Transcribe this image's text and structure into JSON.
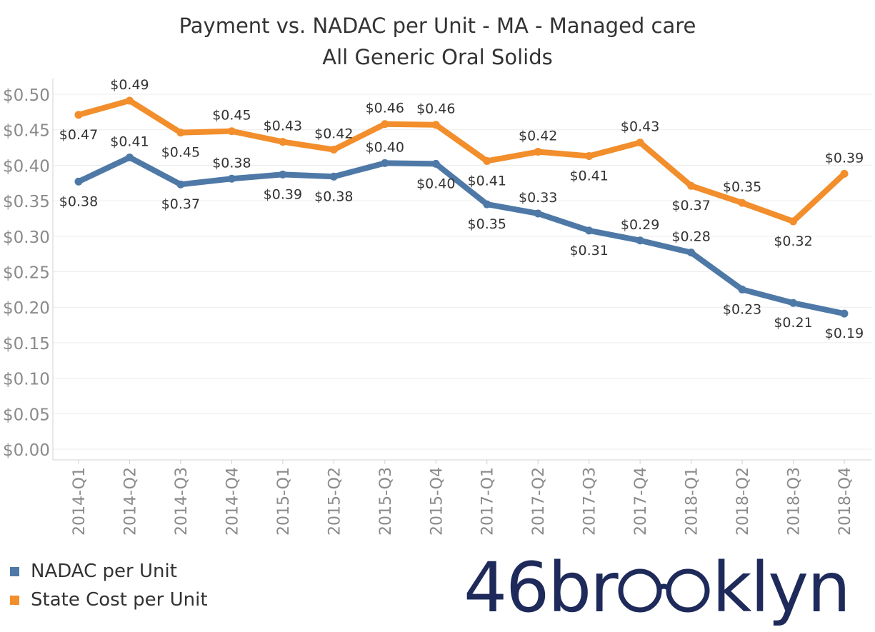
{
  "chart_data": {
    "type": "line",
    "title_line1": "Payment vs. NADAC per Unit - MA - Managed care",
    "title_line2": "All Generic Oral Solids",
    "categories": [
      "2014-Q1",
      "2014-Q2",
      "2014-Q3",
      "2014-Q4",
      "2015-Q1",
      "2015-Q2",
      "2015-Q3",
      "2015-Q4",
      "2017-Q1",
      "2017-Q2",
      "2017-Q3",
      "2017-Q4",
      "2018-Q1",
      "2018-Q2",
      "2018-Q3",
      "2018-Q4"
    ],
    "ylim": [
      0,
      0.5
    ],
    "yticks": [
      0.0,
      0.05,
      0.1,
      0.15,
      0.2,
      0.25,
      0.3,
      0.35,
      0.4,
      0.45,
      0.5
    ],
    "ytick_labels": [
      "$0.00",
      "$0.05",
      "$0.10",
      "$0.15",
      "$0.20",
      "$0.25",
      "$0.30",
      "$0.35",
      "$0.40",
      "$0.45",
      "$0.50"
    ],
    "grid": true,
    "series": [
      {
        "name": "NADAC per Unit",
        "color": "#4e79a7",
        "values": [
          0.377,
          0.411,
          0.373,
          0.381,
          0.387,
          0.384,
          0.403,
          0.402,
          0.345,
          0.332,
          0.308,
          0.294,
          0.277,
          0.225,
          0.206,
          0.191
        ],
        "labels": [
          "$0.38",
          "$0.41",
          "$0.37",
          "$0.38",
          "$0.39",
          "$0.38",
          "$0.40",
          "$0.40",
          "$0.35",
          "$0.33",
          "$0.31",
          "$0.29",
          "$0.28",
          "$0.23",
          "$0.21",
          "$0.19"
        ]
      },
      {
        "name": "State Cost per Unit",
        "color": "#f28e2b",
        "values": [
          0.471,
          0.491,
          0.446,
          0.448,
          0.433,
          0.422,
          0.458,
          0.457,
          0.406,
          0.419,
          0.413,
          0.432,
          0.371,
          0.347,
          0.321,
          0.388
        ],
        "labels": [
          "$0.47",
          "$0.49",
          "$0.45",
          "$0.45",
          "$0.43",
          "$0.42",
          "$0.46",
          "$0.46",
          "$0.41",
          "$0.42",
          "$0.41",
          "$0.43",
          "$0.37",
          "$0.35",
          "$0.32",
          "$0.39"
        ]
      }
    ]
  },
  "legend": {
    "items": [
      {
        "label": "NADAC per Unit",
        "color": "#4e79a7"
      },
      {
        "label": "State Cost per Unit",
        "color": "#f28e2b"
      }
    ]
  },
  "logo": {
    "text_left": "46br",
    "text_right": "klyn",
    "color": "#1e2a5a",
    "icon": "glasses-icon"
  }
}
